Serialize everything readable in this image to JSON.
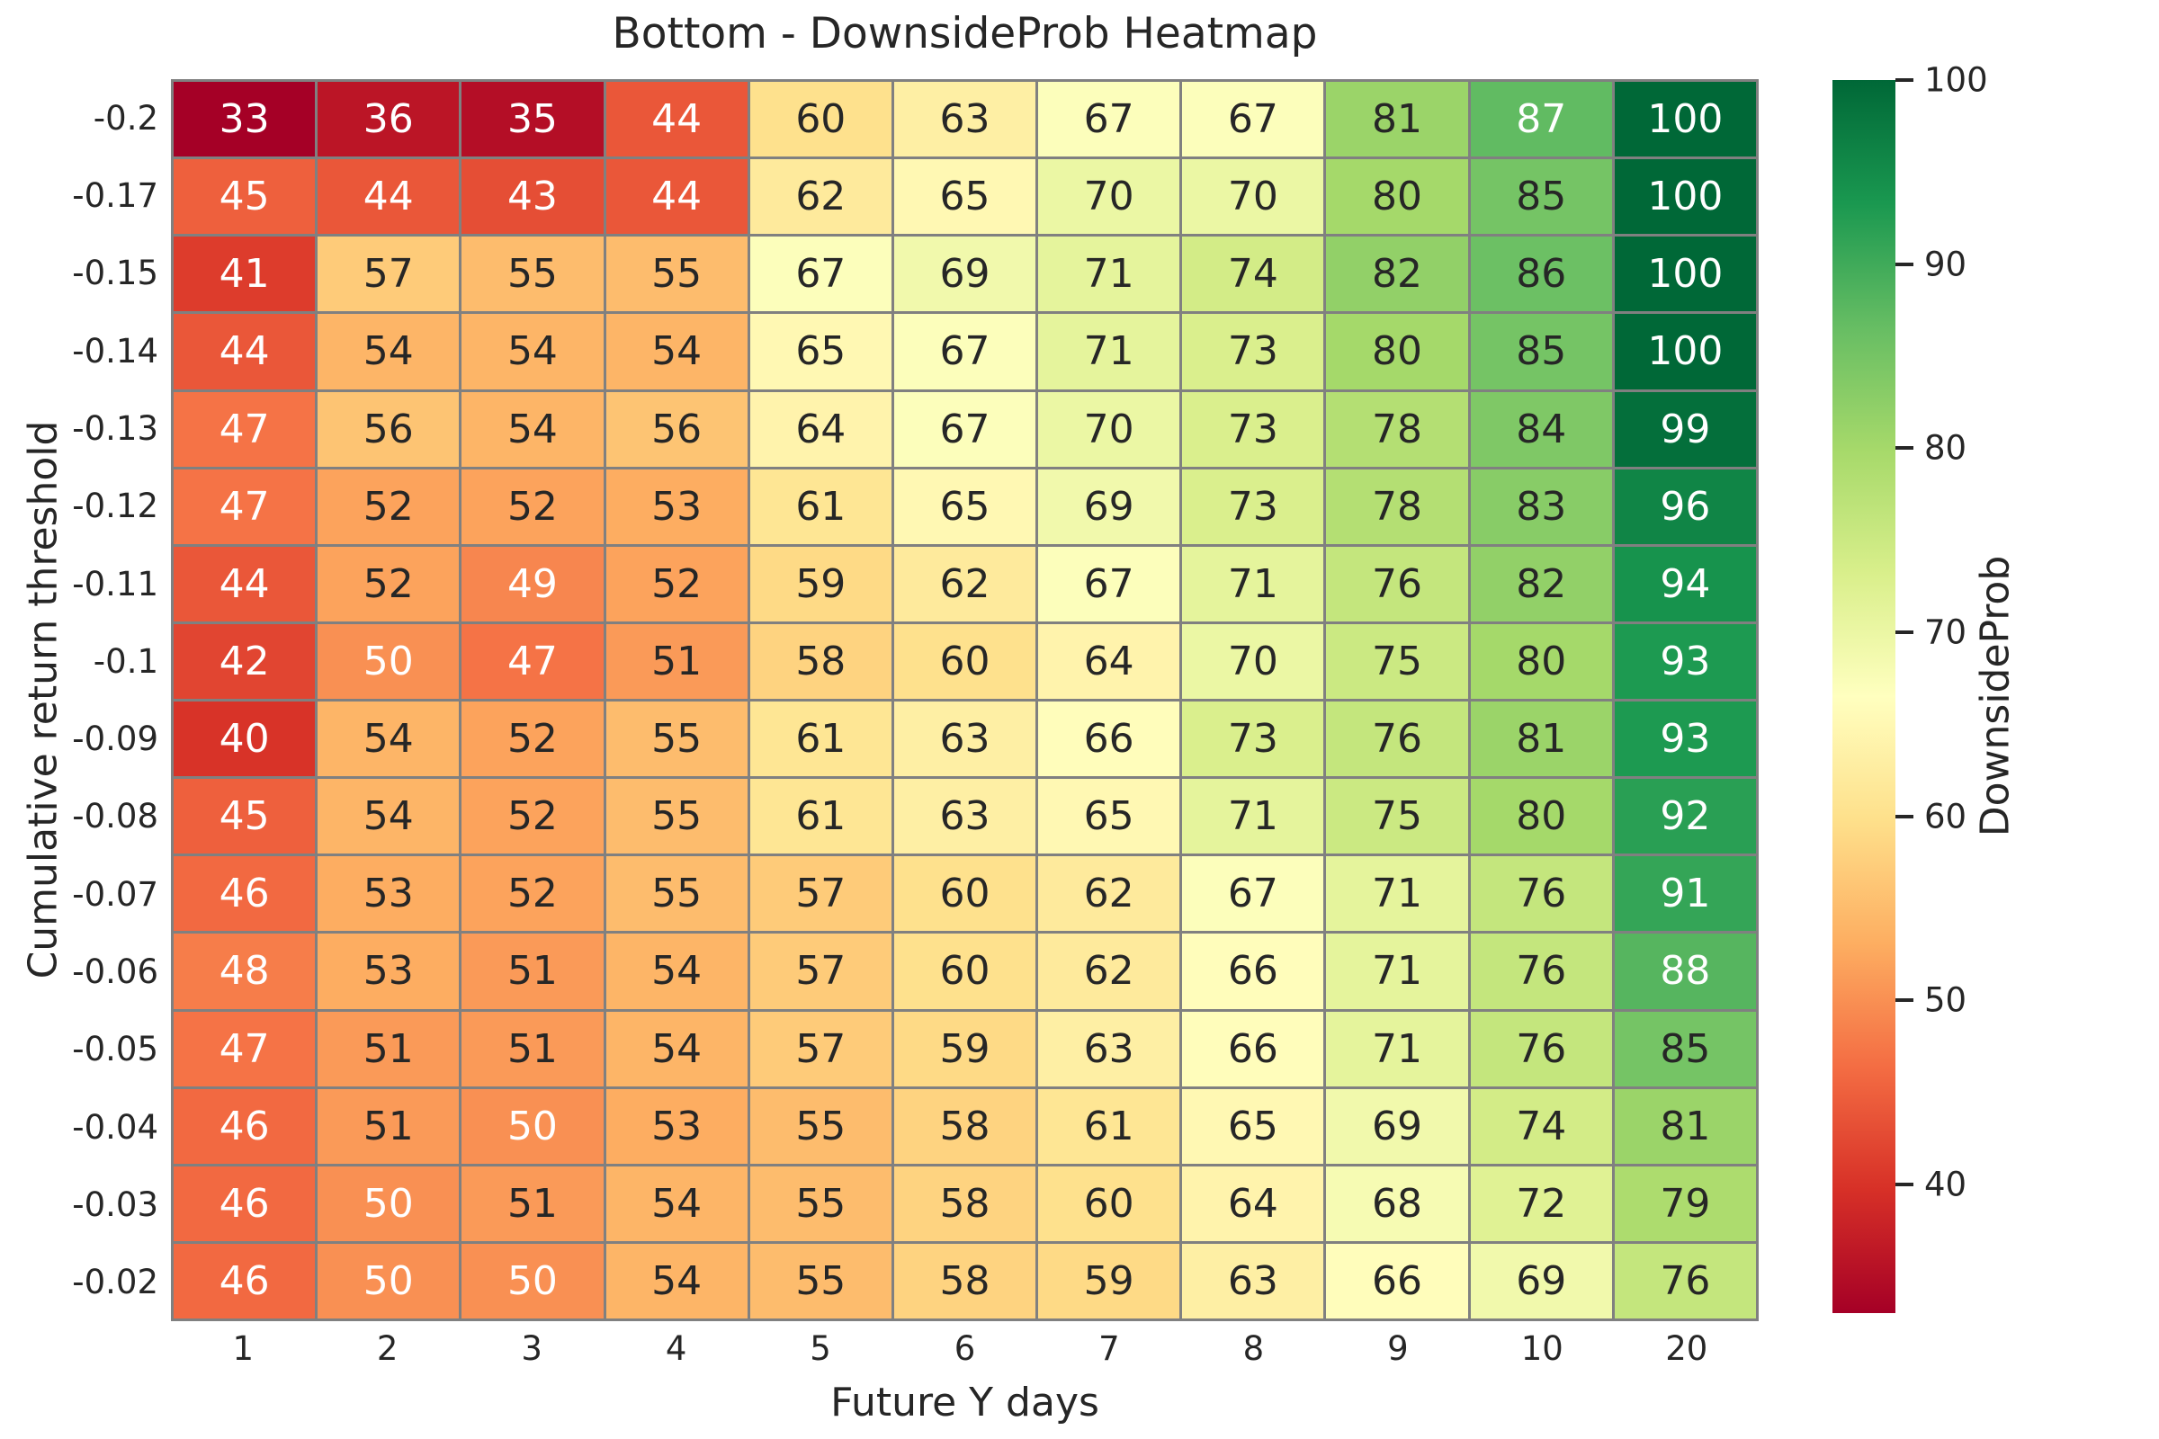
{
  "chart_data": {
    "type": "heatmap",
    "title": "Bottom - DownsideProb Heatmap",
    "xlabel": "Future Y days",
    "ylabel": "Cumulative return threshold",
    "x_ticks": [
      "1",
      "2",
      "3",
      "4",
      "5",
      "6",
      "7",
      "8",
      "9",
      "10",
      "20"
    ],
    "y_ticks": [
      "-0.2",
      "-0.17",
      "-0.15",
      "-0.14",
      "-0.13",
      "-0.12",
      "-0.11",
      "-0.1",
      "-0.09",
      "-0.08",
      "-0.07",
      "-0.06",
      "-0.05",
      "-0.04",
      "-0.03",
      "-0.02"
    ],
    "values": [
      [
        33,
        36,
        35,
        44,
        60,
        63,
        67,
        67,
        81,
        87,
        100
      ],
      [
        45,
        44,
        43,
        44,
        62,
        65,
        70,
        70,
        80,
        85,
        100
      ],
      [
        41,
        57,
        55,
        55,
        67,
        69,
        71,
        74,
        82,
        86,
        100
      ],
      [
        44,
        54,
        54,
        54,
        65,
        67,
        71,
        73,
        80,
        85,
        100
      ],
      [
        47,
        56,
        54,
        56,
        64,
        67,
        70,
        73,
        78,
        84,
        99
      ],
      [
        47,
        52,
        52,
        53,
        61,
        65,
        69,
        73,
        78,
        83,
        96
      ],
      [
        44,
        52,
        49,
        52,
        59,
        62,
        67,
        71,
        76,
        82,
        94
      ],
      [
        42,
        50,
        47,
        51,
        58,
        60,
        64,
        70,
        75,
        80,
        93
      ],
      [
        40,
        54,
        52,
        55,
        61,
        63,
        66,
        73,
        76,
        81,
        93
      ],
      [
        45,
        54,
        52,
        55,
        61,
        63,
        65,
        71,
        75,
        80,
        92
      ],
      [
        46,
        53,
        52,
        55,
        57,
        60,
        62,
        67,
        71,
        76,
        91
      ],
      [
        48,
        53,
        51,
        54,
        57,
        60,
        62,
        66,
        71,
        76,
        88
      ],
      [
        47,
        51,
        51,
        54,
        57,
        59,
        63,
        66,
        71,
        76,
        85
      ],
      [
        46,
        51,
        50,
        53,
        55,
        58,
        61,
        65,
        69,
        74,
        81
      ],
      [
        46,
        50,
        51,
        54,
        55,
        58,
        60,
        64,
        68,
        72,
        79
      ],
      [
        46,
        50,
        50,
        54,
        55,
        58,
        59,
        63,
        66,
        69,
        76
      ]
    ],
    "colorbar": {
      "label": "DownsideProb",
      "ticks": [
        100,
        90,
        80,
        70,
        60,
        50,
        40
      ],
      "vmin": 33,
      "vmax": 100,
      "colormap": "RdYlGn",
      "colormap_anchors": [
        "#a50026",
        "#d73027",
        "#f46d43",
        "#fdae61",
        "#fee08b",
        "#ffffbf",
        "#d9ef8b",
        "#a6d96a",
        "#66bd63",
        "#1a9850",
        "#006837"
      ]
    },
    "layout": {
      "grid_on": false,
      "legend_position": "right-colorbar"
    },
    "styles": {
      "cell_border_color": "#808080",
      "text_dark": "#262626",
      "text_white": "#ffffff",
      "luminance_threshold": 0.408,
      "background": "#ffffff"
    }
  }
}
